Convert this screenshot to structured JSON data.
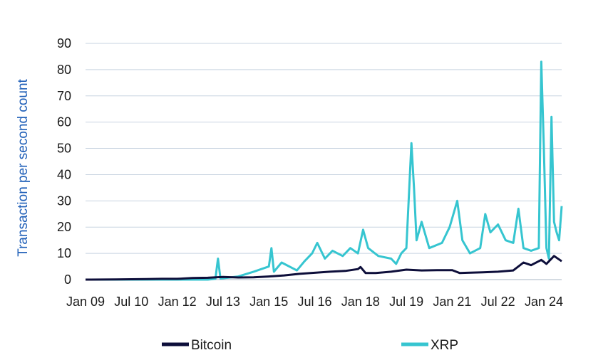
{
  "colors": {
    "bitcoin": "#0d0e3a",
    "xrp": "#36c5d0",
    "grid": "#c7d3e0",
    "axis_title": "#1f5fb8",
    "text": "#1a1a1a"
  },
  "chart_data": {
    "type": "line",
    "title": "",
    "xlabel": "",
    "ylabel": "Transaction per second count",
    "x_range": [
      "2009-01",
      "2024-08"
    ],
    "ylim": [
      0,
      90
    ],
    "y_ticks": [
      0,
      10,
      20,
      30,
      40,
      50,
      60,
      70,
      80,
      90
    ],
    "x_ticks": [
      {
        "date": "2009-01",
        "label": "Jan 09"
      },
      {
        "date": "2010-07",
        "label": "Jul 10"
      },
      {
        "date": "2012-01",
        "label": "Jan 12"
      },
      {
        "date": "2013-07",
        "label": "Jul 13"
      },
      {
        "date": "2015-01",
        "label": "Jan 15"
      },
      {
        "date": "2016-07",
        "label": "Jul 16"
      },
      {
        "date": "2018-01",
        "label": "Jan 18"
      },
      {
        "date": "2019-07",
        "label": "Jul 19"
      },
      {
        "date": "2021-01",
        "label": "Jan 21"
      },
      {
        "date": "2022-07",
        "label": "Jul 22"
      },
      {
        "date": "2024-01",
        "label": "Jan 24"
      }
    ],
    "grid": true,
    "legend_position": "bottom",
    "series": [
      {
        "name": "Bitcoin",
        "color_key": "bitcoin",
        "points": [
          [
            "2009-01",
            0
          ],
          [
            "2010-01",
            0.05
          ],
          [
            "2011-01",
            0.2
          ],
          [
            "2011-07",
            0.3
          ],
          [
            "2012-01",
            0.3
          ],
          [
            "2012-07",
            0.6
          ],
          [
            "2013-01",
            0.7
          ],
          [
            "2013-07",
            1.0
          ],
          [
            "2014-01",
            0.8
          ],
          [
            "2014-07",
            0.9
          ],
          [
            "2015-01",
            1.2
          ],
          [
            "2015-07",
            1.6
          ],
          [
            "2016-01",
            2.2
          ],
          [
            "2016-07",
            2.6
          ],
          [
            "2017-01",
            3.0
          ],
          [
            "2017-07",
            3.3
          ],
          [
            "2017-12",
            4.0
          ],
          [
            "2018-01",
            4.8
          ],
          [
            "2018-03",
            2.5
          ],
          [
            "2018-07",
            2.5
          ],
          [
            "2019-01",
            3.0
          ],
          [
            "2019-07",
            3.8
          ],
          [
            "2020-01",
            3.5
          ],
          [
            "2020-07",
            3.6
          ],
          [
            "2021-01",
            3.6
          ],
          [
            "2021-04",
            2.5
          ],
          [
            "2021-07",
            2.6
          ],
          [
            "2022-01",
            2.8
          ],
          [
            "2022-07",
            3.0
          ],
          [
            "2023-01",
            3.5
          ],
          [
            "2023-05",
            6.5
          ],
          [
            "2023-08",
            5.5
          ],
          [
            "2023-12",
            7.5
          ],
          [
            "2024-02",
            6.0
          ],
          [
            "2024-05",
            9.0
          ],
          [
            "2024-08",
            7.0
          ]
        ]
      },
      {
        "name": "XRP",
        "color_key": "xrp",
        "points": [
          [
            "2009-01",
            0
          ],
          [
            "2013-01",
            0
          ],
          [
            "2013-04",
            0.3
          ],
          [
            "2013-05",
            8
          ],
          [
            "2013-06",
            0.4
          ],
          [
            "2014-01",
            1.2
          ],
          [
            "2014-07",
            3.0
          ],
          [
            "2015-01",
            5.0
          ],
          [
            "2015-02",
            12
          ],
          [
            "2015-03",
            3.0
          ],
          [
            "2015-06",
            6.5
          ],
          [
            "2015-12",
            3.5
          ],
          [
            "2016-03",
            7.0
          ],
          [
            "2016-06",
            10
          ],
          [
            "2016-08",
            14
          ],
          [
            "2016-11",
            8.0
          ],
          [
            "2017-02",
            11
          ],
          [
            "2017-06",
            9.0
          ],
          [
            "2017-09",
            12
          ],
          [
            "2017-12",
            10
          ],
          [
            "2018-02",
            19
          ],
          [
            "2018-04",
            12
          ],
          [
            "2018-08",
            9.0
          ],
          [
            "2019-01",
            8.0
          ],
          [
            "2019-03",
            6.0
          ],
          [
            "2019-05",
            10
          ],
          [
            "2019-07",
            12
          ],
          [
            "2019-09",
            52
          ],
          [
            "2019-10",
            35
          ],
          [
            "2019-11",
            15
          ],
          [
            "2020-01",
            22
          ],
          [
            "2020-04",
            12
          ],
          [
            "2020-09",
            14
          ],
          [
            "2020-12",
            20
          ],
          [
            "2021-03",
            30
          ],
          [
            "2021-05",
            15
          ],
          [
            "2021-08",
            10
          ],
          [
            "2021-12",
            12
          ],
          [
            "2022-02",
            25
          ],
          [
            "2022-04",
            18
          ],
          [
            "2022-07",
            21
          ],
          [
            "2022-10",
            15
          ],
          [
            "2023-01",
            14
          ],
          [
            "2023-03",
            27
          ],
          [
            "2023-05",
            12
          ],
          [
            "2023-08",
            11
          ],
          [
            "2023-11",
            12
          ],
          [
            "2023-12",
            83
          ],
          [
            "2024-01",
            50
          ],
          [
            "2024-02",
            12
          ],
          [
            "2024-03",
            8.0
          ],
          [
            "2024-04",
            62
          ],
          [
            "2024-05",
            22
          ],
          [
            "2024-06",
            18
          ],
          [
            "2024-07",
            15
          ],
          [
            "2024-08",
            28
          ]
        ]
      }
    ]
  },
  "legend": {
    "items": [
      {
        "label": "Bitcoin",
        "color_key": "bitcoin"
      },
      {
        "label": "XRP",
        "color_key": "xrp"
      }
    ]
  }
}
